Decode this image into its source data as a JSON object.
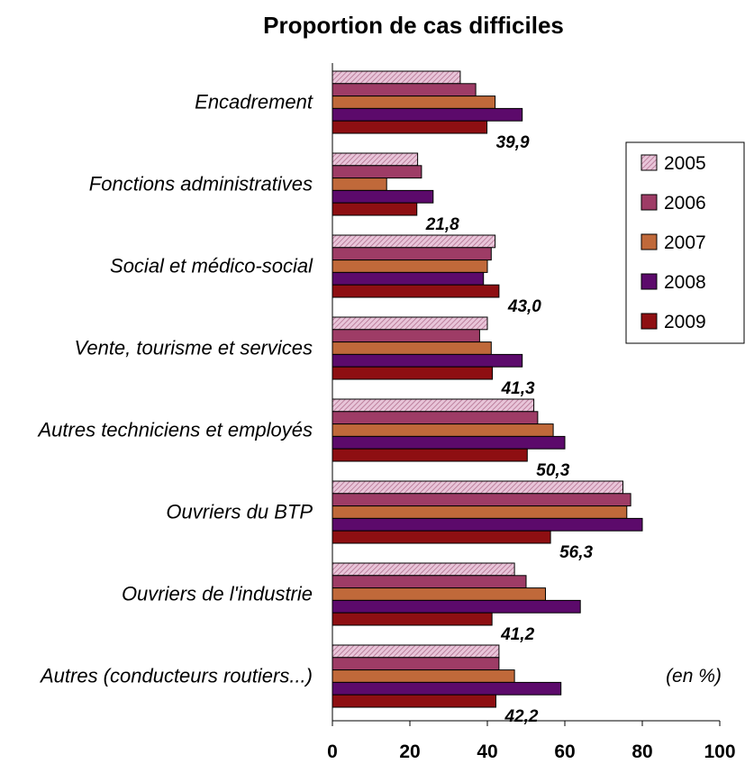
{
  "chart_data": {
    "type": "bar",
    "orientation": "horizontal",
    "title": "Proportion de cas difficiles",
    "unit_note": "(en %)",
    "categories": [
      "Encadrement",
      "Fonctions administratives",
      "Social et médico-social",
      "Vente, tourisme et services",
      "Autres techniciens et employés",
      "Ouvriers du BTP",
      "Ouvriers de l'industrie",
      "Autres (conducteurs routiers...)"
    ],
    "series": [
      {
        "name": "2005",
        "color": "#d4a0bd",
        "pattern": "hatched",
        "values": [
          33,
          22,
          42,
          40,
          52,
          75,
          47,
          43
        ]
      },
      {
        "name": "2006",
        "color": "#9e3c66",
        "values": [
          37,
          23,
          41,
          38,
          53,
          77,
          50,
          43
        ]
      },
      {
        "name": "2007",
        "color": "#c0693a",
        "values": [
          42,
          14,
          40,
          41,
          57,
          76,
          55,
          47
        ]
      },
      {
        "name": "2008",
        "color": "#5c0a6b",
        "values": [
          49,
          26,
          39,
          49,
          60,
          80,
          64,
          59
        ]
      },
      {
        "name": "2009",
        "color": "#8e0f12",
        "values": [
          39.9,
          21.8,
          43.0,
          41.3,
          50.3,
          56.3,
          41.2,
          42.2
        ]
      }
    ],
    "data_labels_2009": [
      "39,9",
      "21,8",
      "43,0",
      "41,3",
      "50,3",
      "56,3",
      "41,2",
      "42,2"
    ],
    "xlim": [
      0,
      100
    ],
    "xticks": [
      "0",
      "20",
      "40",
      "60",
      "80",
      "100"
    ],
    "legend_position": "right",
    "grid": false
  }
}
